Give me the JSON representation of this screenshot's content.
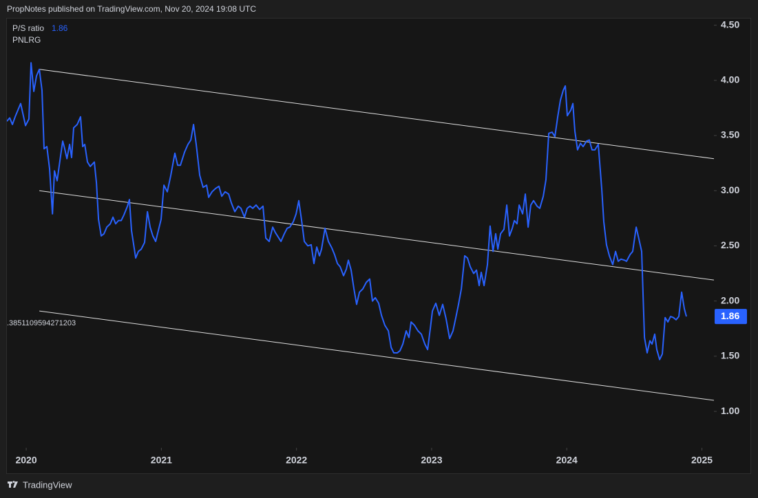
{
  "chart_data": {
    "type": "line",
    "header": "PropNotes published on TradingView.com, Nov 20, 2024 19:08 UTC",
    "legend_title": "P/S ratio",
    "symbol": "PNLRG",
    "brand": "TradingView",
    "annotation": ".3851109594271203",
    "xlim": [
      2019.857,
      2025.089
    ],
    "xticks": [
      2020,
      2021,
      2022,
      2023,
      2024,
      2025
    ],
    "ylim": [
      0.67,
      4.56
    ],
    "yticks": [
      {
        "value": 1,
        "label": "1.00"
      },
      {
        "value": 1.5,
        "label": "1.50"
      },
      {
        "value": 2,
        "label": "2.00"
      },
      {
        "value": 2.5,
        "label": "2.50"
      },
      {
        "value": 3,
        "label": "3.00"
      },
      {
        "value": 3.5,
        "label": "3.50"
      },
      {
        "value": 4,
        "label": "4.00"
      },
      {
        "value": 4.5,
        "label": "4.50"
      }
    ],
    "channel": {
      "color": "#e0e0e0",
      "lines": [
        {
          "x": [
            2020.097,
            2025.089
          ],
          "values": [
            4.1,
            3.29
          ]
        },
        {
          "x": [
            2020.097,
            2025.089
          ],
          "values": [
            3.0,
            2.19
          ]
        },
        {
          "x": [
            2020.097,
            2025.089
          ],
          "values": [
            1.91,
            1.1
          ]
        }
      ]
    },
    "series": [
      {
        "name": "P/S ratio",
        "color": "#2962ff",
        "x": [
          2019.857,
          2019.878,
          2019.898,
          2019.918,
          2019.959,
          2019.995,
          2020.02,
          2020.036,
          2020.056,
          2020.076,
          2020.097,
          2020.117,
          2020.132,
          2020.153,
          2020.173,
          2020.194,
          2020.209,
          2020.229,
          2020.255,
          2020.27,
          2020.285,
          2020.301,
          2020.321,
          2020.336,
          2020.351,
          2020.377,
          2020.402,
          2020.418,
          2020.433,
          2020.453,
          2020.474,
          2020.504,
          2020.52,
          2020.535,
          2020.555,
          2020.576,
          2020.596,
          2020.622,
          2020.642,
          2020.662,
          2020.683,
          2020.703,
          2020.723,
          2020.749,
          2020.764,
          2020.779,
          2020.81,
          2020.83,
          2020.851,
          2020.876,
          2020.897,
          2020.917,
          2020.937,
          2020.958,
          2020.998,
          2021.019,
          2021.044,
          2021.07,
          2021.1,
          2021.121,
          2021.141,
          2021.172,
          2021.197,
          2021.218,
          2021.238,
          2021.258,
          2021.284,
          2021.309,
          2021.335,
          2021.35,
          2021.375,
          2021.401,
          2021.426,
          2021.447,
          2021.472,
          2021.498,
          2021.518,
          2021.544,
          2021.569,
          2021.589,
          2021.615,
          2021.635,
          2021.656,
          2021.676,
          2021.701,
          2021.727,
          2021.752,
          2021.773,
          2021.798,
          2021.824,
          2021.844,
          2021.87,
          2021.885,
          2021.91,
          2021.931,
          2021.951,
          2021.977,
          2021.997,
          2022.017,
          2022.038,
          2022.058,
          2022.084,
          2022.109,
          2022.129,
          2022.15,
          2022.17,
          2022.185,
          2022.211,
          2022.236,
          2022.262,
          2022.282,
          2022.303,
          2022.323,
          2022.348,
          2022.369,
          2022.384,
          2022.404,
          2022.425,
          2022.445,
          2022.466,
          2022.491,
          2022.517,
          2022.542,
          2022.562,
          2022.583,
          2022.608,
          2022.629,
          2022.654,
          2022.68,
          2022.7,
          2022.72,
          2022.746,
          2022.766,
          2022.787,
          2022.812,
          2022.832,
          2022.848,
          2022.873,
          2022.899,
          2022.924,
          2022.95,
          2022.97,
          2022.99,
          2023.006,
          2023.031,
          2023.057,
          2023.082,
          2023.107,
          2023.133,
          2023.158,
          2023.179,
          2023.199,
          2023.22,
          2023.245,
          2023.265,
          2023.286,
          2023.311,
          2023.332,
          2023.352,
          2023.367,
          2023.388,
          2023.413,
          2023.433,
          2023.454,
          2023.474,
          2023.49,
          2023.51,
          2023.535,
          2023.556,
          2023.576,
          2023.597,
          2023.612,
          2023.632,
          2023.648,
          2023.673,
          2023.693,
          2023.714,
          2023.734,
          2023.754,
          2023.78,
          2023.8,
          2023.826,
          2023.846,
          2023.867,
          2023.892,
          2023.912,
          2023.933,
          2023.953,
          2023.974,
          2023.989,
          2024.004,
          2024.03,
          2024.045,
          2024.06,
          2024.08,
          2024.101,
          2024.121,
          2024.147,
          2024.167,
          2024.187,
          2024.208,
          2024.233,
          2024.259,
          2024.274,
          2024.294,
          2024.315,
          2024.34,
          2024.361,
          2024.381,
          2024.401,
          2024.427,
          2024.442,
          2024.468,
          2024.488,
          2024.514,
          2024.534,
          2024.554,
          2024.575,
          2024.595,
          2024.615,
          2024.631,
          2024.651,
          2024.666,
          2024.687,
          2024.707,
          2024.728,
          2024.748,
          2024.768,
          2024.789,
          2024.809,
          2024.829,
          2024.85,
          2024.87,
          2024.885
        ],
        "values": [
          3.63,
          3.66,
          3.6,
          3.67,
          3.79,
          3.59,
          3.65,
          4.16,
          3.9,
          4.04,
          4.1,
          3.91,
          3.38,
          3.4,
          3.2,
          2.79,
          3.18,
          3.09,
          3.32,
          3.45,
          3.38,
          3.29,
          3.42,
          3.3,
          3.57,
          3.6,
          3.67,
          3.4,
          3.42,
          3.26,
          3.22,
          3.26,
          3.07,
          2.74,
          2.59,
          2.61,
          2.67,
          2.7,
          2.76,
          2.7,
          2.73,
          2.73,
          2.78,
          2.86,
          2.92,
          2.64,
          2.39,
          2.45,
          2.47,
          2.53,
          2.81,
          2.67,
          2.59,
          2.54,
          2.74,
          3.05,
          2.99,
          3.14,
          3.34,
          3.23,
          3.23,
          3.35,
          3.42,
          3.46,
          3.6,
          3.42,
          3.14,
          3.03,
          3.05,
          2.94,
          2.99,
          3.02,
          3.04,
          2.95,
          2.99,
          2.97,
          2.89,
          2.81,
          2.86,
          2.84,
          2.76,
          2.84,
          2.86,
          2.84,
          2.87,
          2.83,
          2.86,
          2.57,
          2.54,
          2.67,
          2.62,
          2.57,
          2.54,
          2.61,
          2.66,
          2.67,
          2.72,
          2.79,
          2.91,
          2.73,
          2.54,
          2.5,
          2.51,
          2.34,
          2.49,
          2.41,
          2.47,
          2.66,
          2.54,
          2.48,
          2.42,
          2.34,
          2.31,
          2.23,
          2.29,
          2.37,
          2.28,
          2.11,
          1.97,
          2.08,
          2.11,
          2.17,
          2.2,
          2.0,
          2.03,
          1.98,
          1.87,
          1.78,
          1.73,
          1.58,
          1.53,
          1.53,
          1.55,
          1.61,
          1.73,
          1.67,
          1.81,
          1.78,
          1.73,
          1.7,
          1.61,
          1.56,
          1.75,
          1.91,
          1.98,
          1.87,
          1.97,
          1.84,
          1.66,
          1.73,
          1.85,
          1.97,
          2.11,
          2.41,
          2.39,
          2.31,
          2.25,
          2.28,
          2.14,
          2.26,
          2.14,
          2.33,
          2.68,
          2.45,
          2.61,
          2.47,
          2.61,
          2.65,
          2.87,
          2.59,
          2.66,
          2.73,
          2.7,
          2.87,
          2.79,
          2.97,
          2.67,
          2.87,
          2.91,
          2.86,
          2.84,
          2.95,
          3.1,
          3.52,
          3.53,
          3.49,
          3.67,
          3.82,
          3.91,
          3.95,
          3.68,
          3.73,
          3.79,
          3.54,
          3.37,
          3.43,
          3.4,
          3.45,
          3.46,
          3.37,
          3.37,
          3.42,
          3.01,
          2.72,
          2.51,
          2.41,
          2.33,
          2.45,
          2.36,
          2.38,
          2.37,
          2.36,
          2.42,
          2.45,
          2.67,
          2.56,
          2.45,
          1.67,
          1.53,
          1.64,
          1.61,
          1.7,
          1.56,
          1.47,
          1.52,
          1.85,
          1.81,
          1.86,
          1.85,
          1.83,
          1.86,
          2.08,
          1.93,
          1.86
        ]
      }
    ]
  }
}
